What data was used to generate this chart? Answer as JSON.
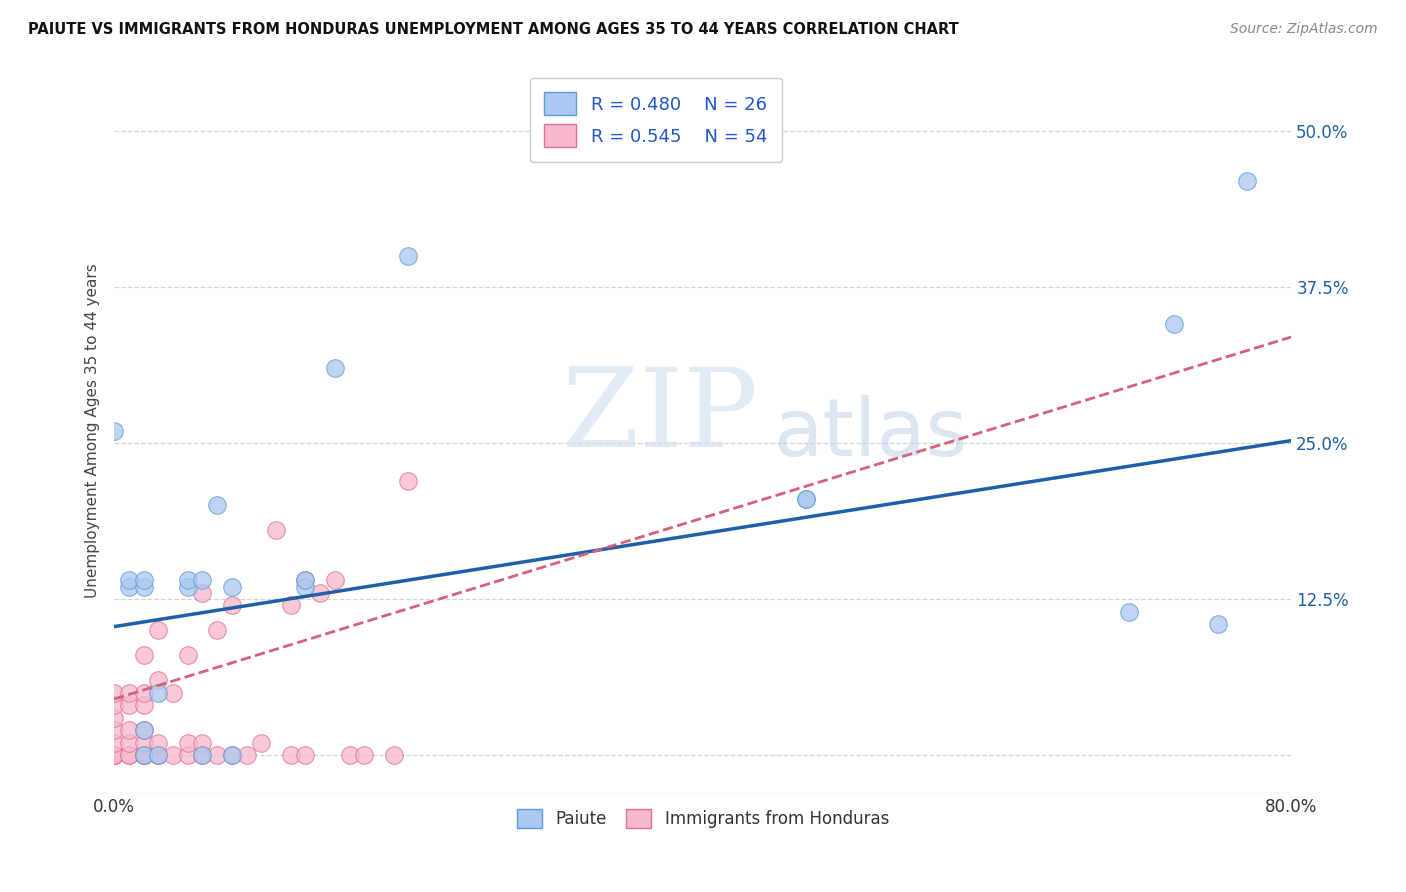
{
  "title": "PAIUTE VS IMMIGRANTS FROM HONDURAS UNEMPLOYMENT AMONG AGES 35 TO 44 YEARS CORRELATION CHART",
  "source": "Source: ZipAtlas.com",
  "ylabel": "Unemployment Among Ages 35 to 44 years",
  "xlim": [
    0.0,
    0.8
  ],
  "ylim": [
    -0.03,
    0.55
  ],
  "xticks": [
    0.0,
    0.1,
    0.2,
    0.3,
    0.4,
    0.5,
    0.6,
    0.7,
    0.8
  ],
  "ytick_positions": [
    0.0,
    0.125,
    0.25,
    0.375,
    0.5
  ],
  "yticklabels": [
    "",
    "12.5%",
    "25.0%",
    "37.5%",
    "50.0%"
  ],
  "paiute_color": "#aac8f0",
  "honduras_color": "#f7b8cc",
  "paiute_edge_color": "#5b9bd5",
  "honduras_edge_color": "#e07090",
  "paiute_line_color": "#1f5fa6",
  "honduras_line_color": "#d4607a",
  "legend_text_color": "#2255cc",
  "R_paiute": 0.48,
  "N_paiute": 26,
  "R_honduras": 0.545,
  "N_honduras": 54,
  "paiute_x": [
    0.0,
    0.01,
    0.01,
    0.02,
    0.02,
    0.02,
    0.02,
    0.03,
    0.03,
    0.05,
    0.05,
    0.06,
    0.06,
    0.07,
    0.08,
    0.08,
    0.13,
    0.13,
    0.15,
    0.2,
    0.47,
    0.47,
    0.69,
    0.72,
    0.75,
    0.77
  ],
  "paiute_y": [
    0.26,
    0.135,
    0.14,
    0.0,
    0.02,
    0.135,
    0.14,
    0.0,
    0.05,
    0.135,
    0.14,
    0.0,
    0.14,
    0.2,
    0.0,
    0.135,
    0.135,
    0.14,
    0.31,
    0.4,
    0.205,
    0.205,
    0.115,
    0.345,
    0.105,
    0.46
  ],
  "honduras_x": [
    0.0,
    0.0,
    0.0,
    0.0,
    0.0,
    0.0,
    0.0,
    0.0,
    0.0,
    0.0,
    0.01,
    0.01,
    0.01,
    0.01,
    0.01,
    0.01,
    0.02,
    0.02,
    0.02,
    0.02,
    0.02,
    0.02,
    0.02,
    0.02,
    0.03,
    0.03,
    0.03,
    0.03,
    0.03,
    0.04,
    0.04,
    0.05,
    0.05,
    0.05,
    0.06,
    0.06,
    0.06,
    0.07,
    0.07,
    0.08,
    0.08,
    0.09,
    0.1,
    0.11,
    0.12,
    0.12,
    0.13,
    0.13,
    0.14,
    0.15,
    0.16,
    0.17,
    0.19,
    0.2
  ],
  "honduras_y": [
    0.0,
    0.0,
    0.0,
    0.0,
    0.0,
    0.01,
    0.02,
    0.03,
    0.04,
    0.05,
    0.0,
    0.0,
    0.01,
    0.02,
    0.04,
    0.05,
    0.0,
    0.0,
    0.0,
    0.01,
    0.02,
    0.04,
    0.05,
    0.08,
    0.0,
    0.0,
    0.01,
    0.06,
    0.1,
    0.0,
    0.05,
    0.0,
    0.01,
    0.08,
    0.0,
    0.01,
    0.13,
    0.0,
    0.1,
    0.0,
    0.12,
    0.0,
    0.01,
    0.18,
    0.0,
    0.12,
    0.0,
    0.14,
    0.13,
    0.14,
    0.0,
    0.0,
    0.0,
    0.22
  ],
  "watermark_zip": "ZIP",
  "watermark_atlas": "atlas",
  "background_color": "#ffffff",
  "grid_color": "#c8c8c8"
}
